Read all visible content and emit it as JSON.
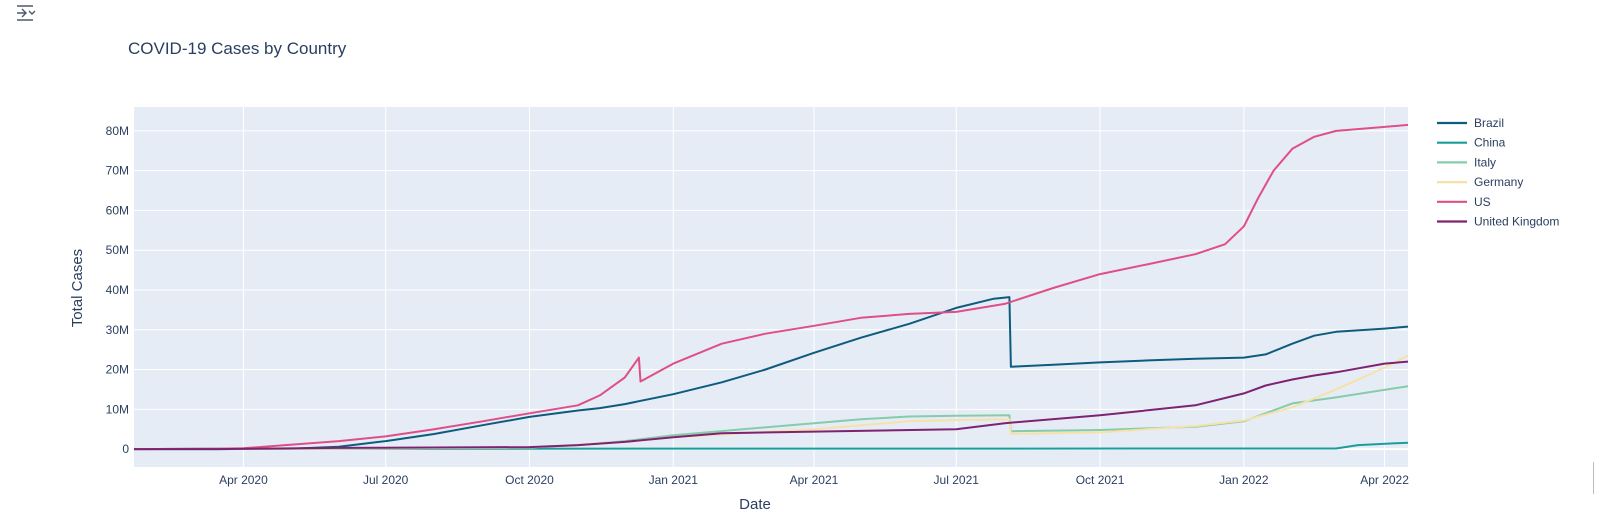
{
  "toolbar": {
    "icon": "filter-sliders-icon"
  },
  "chart_data": {
    "type": "line",
    "title": "COVID-19 Cases by Country",
    "xlabel": "Date",
    "ylabel": "Total Cases",
    "xlim": [
      "2020-01-22",
      "2022-04-16"
    ],
    "ylim": [
      -4500000,
      86000000
    ],
    "x_ticks": [
      {
        "date": "2020-04-01",
        "label": "Apr 2020"
      },
      {
        "date": "2020-07-01",
        "label": "Jul 2020"
      },
      {
        "date": "2020-10-01",
        "label": "Oct 2020"
      },
      {
        "date": "2021-01-01",
        "label": "Jan 2021"
      },
      {
        "date": "2021-04-01",
        "label": "Apr 2021"
      },
      {
        "date": "2021-07-01",
        "label": "Jul 2021"
      },
      {
        "date": "2021-10-01",
        "label": "Oct 2021"
      },
      {
        "date": "2022-01-01",
        "label": "Jan 2022"
      },
      {
        "date": "2022-04-01",
        "label": "Apr 2022"
      }
    ],
    "y_ticks": [
      {
        "value": 0,
        "label": "0"
      },
      {
        "value": 10000000,
        "label": "10M"
      },
      {
        "value": 20000000,
        "label": "20M"
      },
      {
        "value": 30000000,
        "label": "30M"
      },
      {
        "value": 40000000,
        "label": "40M"
      },
      {
        "value": 50000000,
        "label": "50M"
      },
      {
        "value": 60000000,
        "label": "60M"
      },
      {
        "value": 70000000,
        "label": "70M"
      },
      {
        "value": 80000000,
        "label": "80M"
      }
    ],
    "grid": true,
    "legend": "right",
    "colors": {
      "Brazil": "#0d5c7d",
      "China": "#1a9e9a",
      "Italy": "#86ccaa",
      "Germany": "#f6e2a8",
      "US": "#df4e87",
      "United Kingdom": "#7e2272"
    },
    "series": [
      {
        "name": "Brazil",
        "x": [
          "2020-01-22",
          "2020-03-15",
          "2020-05-01",
          "2020-06-01",
          "2020-07-01",
          "2020-08-01",
          "2020-09-01",
          "2020-10-01",
          "2020-11-01",
          "2020-11-15",
          "2020-12-01",
          "2021-01-01",
          "2021-02-01",
          "2021-03-01",
          "2021-04-01",
          "2021-05-01",
          "2021-06-01",
          "2021-07-01",
          "2021-07-25",
          "2021-08-04",
          "2021-08-05",
          "2021-09-01",
          "2021-10-01",
          "2021-11-01",
          "2021-12-01",
          "2022-01-01",
          "2022-01-15",
          "2022-02-01",
          "2022-02-15",
          "2022-03-01",
          "2022-04-01",
          "2022-04-16"
        ],
        "y": [
          0,
          0,
          100000,
          600000,
          2000000,
          3800000,
          6000000,
          8100000,
          9700000,
          10300000,
          11300000,
          13800000,
          16800000,
          20000000,
          24200000,
          28000000,
          31500000,
          35500000,
          37800000,
          38200000,
          20700000,
          21200000,
          21800000,
          22300000,
          22700000,
          23000000,
          23800000,
          26500000,
          28500000,
          29500000,
          30300000,
          30800000
        ]
      },
      {
        "name": "China",
        "x": [
          "2020-01-22",
          "2020-03-01",
          "2022-03-01",
          "2022-03-15",
          "2022-04-16"
        ],
        "y": [
          0,
          80000,
          150000,
          1000000,
          1600000
        ]
      },
      {
        "name": "Italy",
        "x": [
          "2020-01-22",
          "2020-03-01",
          "2020-10-01",
          "2020-11-01",
          "2020-12-01",
          "2021-01-01",
          "2021-04-01",
          "2021-05-01",
          "2021-06-01",
          "2021-07-01",
          "2021-08-04",
          "2021-08-05",
          "2021-10-01",
          "2021-12-01",
          "2022-01-01",
          "2022-02-01",
          "2022-03-01",
          "2022-04-16"
        ],
        "y": [
          0,
          0,
          400000,
          1000000,
          2000000,
          3500000,
          6500000,
          7500000,
          8200000,
          8400000,
          8500000,
          4500000,
          4800000,
          5600000,
          7000000,
          11500000,
          13000000,
          15800000
        ]
      },
      {
        "name": "Germany",
        "x": [
          "2020-01-22",
          "2020-03-01",
          "2020-10-01",
          "2020-12-01",
          "2021-01-01",
          "2021-04-01",
          "2021-06-01",
          "2021-07-01",
          "2021-08-04",
          "2021-08-05",
          "2021-10-01",
          "2021-12-01",
          "2022-01-01",
          "2022-02-01",
          "2022-03-01",
          "2022-04-01",
          "2022-04-16"
        ],
        "y": [
          0,
          0,
          400000,
          1800000,
          3000000,
          5000000,
          7000000,
          7300000,
          7500000,
          3800000,
          4200000,
          5800000,
          7200000,
          10500000,
          15000000,
          20500000,
          23500000
        ]
      },
      {
        "name": "US",
        "x": [
          "2020-01-22",
          "2020-03-15",
          "2020-04-01",
          "2020-05-01",
          "2020-06-01",
          "2020-07-01",
          "2020-08-01",
          "2020-09-01",
          "2020-10-01",
          "2020-11-01",
          "2020-11-15",
          "2020-12-01",
          "2020-12-10",
          "2020-12-11",
          "2021-01-01",
          "2021-02-01",
          "2021-03-01",
          "2021-04-01",
          "2021-05-01",
          "2021-06-01",
          "2021-07-01",
          "2021-08-01",
          "2021-09-01",
          "2021-10-01",
          "2021-11-01",
          "2021-12-01",
          "2021-12-20",
          "2022-01-01",
          "2022-01-10",
          "2022-01-20",
          "2022-02-01",
          "2022-02-15",
          "2022-03-01",
          "2022-04-01",
          "2022-04-16"
        ],
        "y": [
          0,
          100000,
          200000,
          1100000,
          2000000,
          3200000,
          5000000,
          7000000,
          9000000,
          11000000,
          13500000,
          18000000,
          23000000,
          17000000,
          21500000,
          26500000,
          29000000,
          31000000,
          33000000,
          34000000,
          34500000,
          36500000,
          40500000,
          44000000,
          46500000,
          49000000,
          51500000,
          56000000,
          63000000,
          70000000,
          75500000,
          78500000,
          80000000,
          81000000,
          81500000
        ]
      },
      {
        "name": "United Kingdom",
        "x": [
          "2020-01-22",
          "2020-03-15",
          "2020-06-01",
          "2020-10-01",
          "2020-11-01",
          "2020-12-01",
          "2021-01-01",
          "2021-02-01",
          "2021-04-01",
          "2021-07-01",
          "2021-08-01",
          "2021-10-01",
          "2021-12-01",
          "2022-01-01",
          "2022-01-15",
          "2022-02-01",
          "2022-02-15",
          "2022-03-01",
          "2022-04-01",
          "2022-04-16"
        ],
        "y": [
          0,
          0,
          300000,
          500000,
          1000000,
          1800000,
          3000000,
          4000000,
          4400000,
          5000000,
          6500000,
          8500000,
          11000000,
          14000000,
          16000000,
          17500000,
          18500000,
          19300000,
          21500000,
          22000000
        ]
      }
    ]
  }
}
